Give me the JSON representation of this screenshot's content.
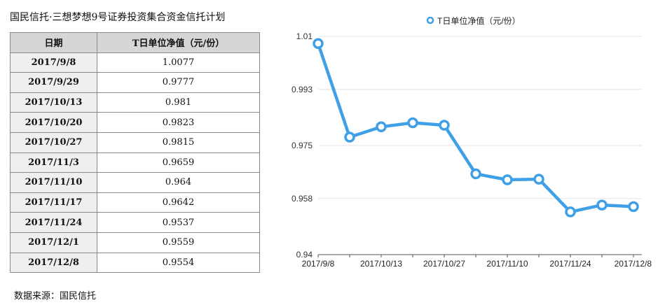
{
  "table": {
    "title": "国民信托·三想梦想9号证券投资集合资金信托计划",
    "headers": [
      "日期",
      "T日单位净值（元/份）"
    ],
    "rows": [
      [
        "2017/9/8",
        "1.0077"
      ],
      [
        "2017/9/29",
        "0.9777"
      ],
      [
        "2017/10/13",
        "0.981"
      ],
      [
        "2017/10/20",
        "0.9823"
      ],
      [
        "2017/10/27",
        "0.9815"
      ],
      [
        "2017/11/3",
        "0.9659"
      ],
      [
        "2017/11/10",
        "0.964"
      ],
      [
        "2017/11/17",
        "0.9642"
      ],
      [
        "2017/11/24",
        "0.9537"
      ],
      [
        "2017/12/1",
        "0.9559"
      ],
      [
        "2017/12/8",
        "0.9554"
      ]
    ]
  },
  "source_note": "数据来源：国民信托",
  "chart_data": {
    "type": "line",
    "x": [
      "2017/9/8",
      "2017/9/29",
      "2017/10/13",
      "2017/10/20",
      "2017/10/27",
      "2017/11/3",
      "2017/11/10",
      "2017/11/17",
      "2017/11/24",
      "2017/12/1",
      "2017/12/8"
    ],
    "series": [
      {
        "name": "T日单位净值（元/份）",
        "values": [
          1.0077,
          0.9777,
          0.981,
          0.9823,
          0.9815,
          0.9659,
          0.964,
          0.9642,
          0.9537,
          0.9559,
          0.9554
        ]
      }
    ],
    "xticks": [
      "2017/9/8",
      "2017/10/13",
      "2017/10/27",
      "2017/11/10",
      "2017/11/24",
      "2017/12/8"
    ],
    "ytick_labels": [
      "0.94",
      "0.958",
      "0.975",
      "0.993",
      "1.01"
    ],
    "ylim": [
      0.94,
      1.01
    ],
    "grid": "horizontal",
    "legend_position": "top-center",
    "colors": {
      "series": "#3fa0e8",
      "marker_fill": "#ffffff",
      "grid": "#e3e3e3",
      "axis": "#555555"
    }
  }
}
